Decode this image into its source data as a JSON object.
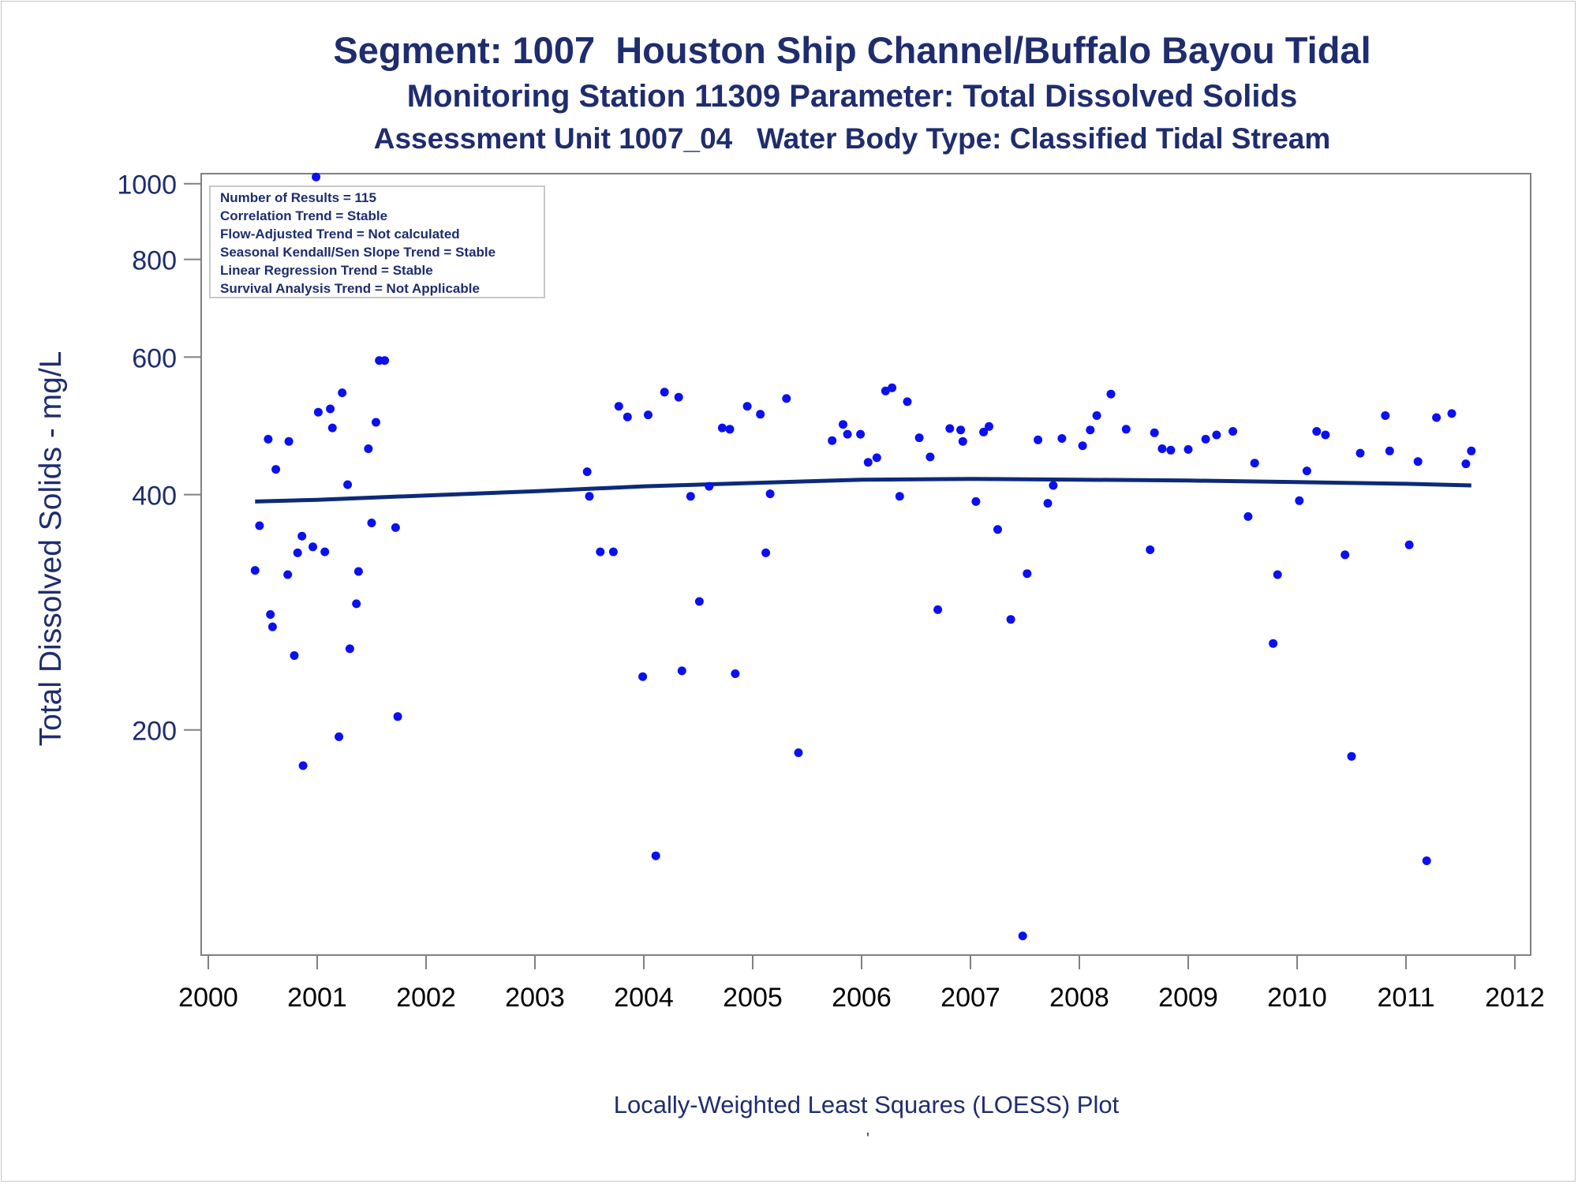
{
  "titles": {
    "line1": "Segment: 1007  Houston Ship Channel/Buffalo Bayou Tidal",
    "line2": "Monitoring Station 11309 Parameter: Total Dissolved Solids",
    "line3": "Assessment Unit 1007_04   Water Body Type: Classified Tidal Stream"
  },
  "footer": "Locally-Weighted Least Squares (LOESS) Plot",
  "footer_mark": "'",
  "info_box": [
    "Number of Results = 115",
    "Correlation Trend = Stable",
    "Flow-Adjusted Trend = Not calculated",
    "Seasonal Kendall/Sen Slope Trend = Stable",
    "Linear Regression Trend = Stable",
    "Survival Analysis Trend = Not Applicable"
  ],
  "colors": {
    "text": "#1f2d6e",
    "points": "#0a10f0",
    "loess_line": "#0d2a78",
    "axis": "#808080"
  },
  "chart_data": {
    "type": "scatter",
    "xlabel": "",
    "ylabel": "Total Dissolved Solids - mg/L",
    "y_scale": "log",
    "xlim": [
      2000,
      2012
    ],
    "ylim": [
      103,
      1030
    ],
    "x_ticks": [
      2000,
      2001,
      2002,
      2003,
      2004,
      2005,
      2006,
      2007,
      2008,
      2009,
      2010,
      2011,
      2012
    ],
    "y_ticks": [
      200,
      400,
      600,
      800,
      1000
    ],
    "grid": false,
    "series": [
      {
        "type": "scatter",
        "points": [
          [
            2000.43,
            320
          ],
          [
            2000.47,
            365
          ],
          [
            2000.55,
            471
          ],
          [
            2000.57,
            281
          ],
          [
            2000.59,
            271
          ],
          [
            2000.62,
            431
          ],
          [
            2000.73,
            316
          ],
          [
            2000.74,
            468
          ],
          [
            2000.79,
            249
          ],
          [
            2000.82,
            337
          ],
          [
            2000.86,
            354
          ],
          [
            2000.87,
            180
          ],
          [
            2000.96,
            343
          ],
          [
            2000.99,
            1020
          ],
          [
            2001.01,
            510
          ],
          [
            2001.07,
            338
          ],
          [
            2001.12,
            515
          ],
          [
            2001.14,
            487
          ],
          [
            2001.2,
            196
          ],
          [
            2001.23,
            540
          ],
          [
            2001.28,
            412
          ],
          [
            2001.3,
            254
          ],
          [
            2001.36,
            290
          ],
          [
            2001.38,
            319
          ],
          [
            2001.47,
            458
          ],
          [
            2001.5,
            368
          ],
          [
            2001.54,
            495
          ],
          [
            2001.57,
            594
          ],
          [
            2001.62,
            594
          ],
          [
            2001.72,
            363
          ],
          [
            2001.74,
            208
          ],
          [
            2003.48,
            428
          ],
          [
            2003.5,
            398
          ],
          [
            2003.6,
            338
          ],
          [
            2003.72,
            338
          ],
          [
            2003.77,
            519
          ],
          [
            2003.85,
            503
          ],
          [
            2003.99,
            234
          ],
          [
            2004.04,
            506
          ],
          [
            2004.11,
            138
          ],
          [
            2004.19,
            541
          ],
          [
            2004.32,
            533
          ],
          [
            2004.35,
            238
          ],
          [
            2004.43,
            398
          ],
          [
            2004.51,
            292
          ],
          [
            2004.6,
            410
          ],
          [
            2004.72,
            487
          ],
          [
            2004.79,
            485
          ],
          [
            2004.84,
            236
          ],
          [
            2004.95,
            519
          ],
          [
            2005.07,
            507
          ],
          [
            2005.12,
            337
          ],
          [
            2005.16,
            401
          ],
          [
            2005.31,
            531
          ],
          [
            2005.42,
            187
          ],
          [
            2005.73,
            469
          ],
          [
            2005.83,
            492
          ],
          [
            2005.87,
            478
          ],
          [
            2005.99,
            478
          ],
          [
            2006.06,
            440
          ],
          [
            2006.14,
            446
          ],
          [
            2006.22,
            543
          ],
          [
            2006.28,
            548
          ],
          [
            2006.35,
            398
          ],
          [
            2006.42,
            526
          ],
          [
            2006.53,
            473
          ],
          [
            2006.63,
            447
          ],
          [
            2006.7,
            285
          ],
          [
            2006.81,
            486
          ],
          [
            2006.91,
            484
          ],
          [
            2006.93,
            468
          ],
          [
            2007.05,
            392
          ],
          [
            2007.12,
            481
          ],
          [
            2007.17,
            489
          ],
          [
            2007.25,
            361
          ],
          [
            2007.37,
            277
          ],
          [
            2007.48,
            109
          ],
          [
            2007.52,
            317
          ],
          [
            2007.62,
            470
          ],
          [
            2007.71,
            390
          ],
          [
            2007.76,
            411
          ],
          [
            2007.84,
            472
          ],
          [
            2008.03,
            462
          ],
          [
            2008.1,
            484
          ],
          [
            2008.16,
            505
          ],
          [
            2008.29,
            538
          ],
          [
            2008.43,
            485
          ],
          [
            2008.65,
            340
          ],
          [
            2008.69,
            480
          ],
          [
            2008.76,
            458
          ],
          [
            2008.84,
            456
          ],
          [
            2009.0,
            457
          ],
          [
            2009.16,
            471
          ],
          [
            2009.26,
            477
          ],
          [
            2009.41,
            482
          ],
          [
            2009.55,
            375
          ],
          [
            2009.61,
            439
          ],
          [
            2009.78,
            258
          ],
          [
            2009.82,
            316
          ],
          [
            2010.02,
            393
          ],
          [
            2010.09,
            429
          ],
          [
            2010.18,
            482
          ],
          [
            2010.26,
            477
          ],
          [
            2010.44,
            335
          ],
          [
            2010.5,
            185
          ],
          [
            2010.58,
            452
          ],
          [
            2010.81,
            505
          ],
          [
            2010.85,
            455
          ],
          [
            2011.03,
            345
          ],
          [
            2011.11,
            441
          ],
          [
            2011.19,
            136
          ],
          [
            2011.28,
            502
          ],
          [
            2011.42,
            508
          ],
          [
            2011.55,
            438
          ],
          [
            2011.6,
            455
          ]
        ]
      },
      {
        "type": "line",
        "points": [
          [
            2000.43,
            392
          ],
          [
            2001.0,
            394
          ],
          [
            2002.0,
            399
          ],
          [
            2003.0,
            404
          ],
          [
            2004.0,
            410
          ],
          [
            2005.0,
            414
          ],
          [
            2006.0,
            418
          ],
          [
            2007.0,
            419
          ],
          [
            2008.0,
            418
          ],
          [
            2009.0,
            417
          ],
          [
            2010.0,
            415
          ],
          [
            2011.0,
            413
          ],
          [
            2011.6,
            411
          ]
        ]
      }
    ]
  }
}
